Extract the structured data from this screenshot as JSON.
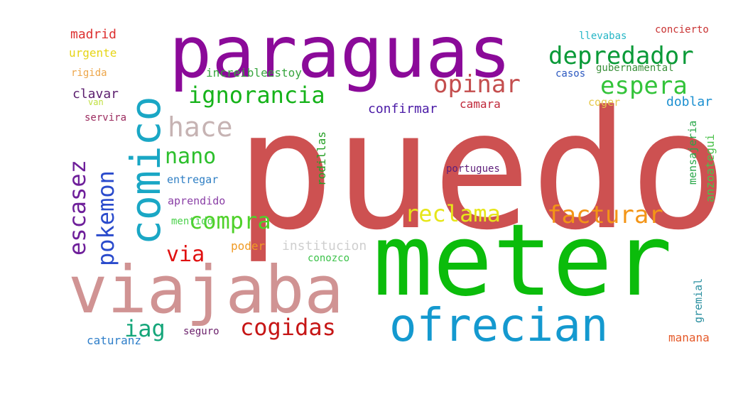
{
  "words": [
    {
      "text": "puedo",
      "color": "#cd5151",
      "orientation": "horizontal"
    },
    {
      "text": "meter",
      "color": "#0bbc0b",
      "orientation": "horizontal"
    },
    {
      "text": "paraguas",
      "color": "#8b0a99",
      "orientation": "horizontal"
    },
    {
      "text": "viajaba",
      "color": "#d09393",
      "orientation": "horizontal"
    },
    {
      "text": "comico",
      "color": "#1aa7c5",
      "orientation": "vertical"
    },
    {
      "text": "ofrecian",
      "color": "#1499cf",
      "orientation": "horizontal"
    },
    {
      "text": "depredador",
      "color": "#0a9a38",
      "orientation": "horizontal"
    },
    {
      "text": "ignorancia",
      "color": "#16b31a",
      "orientation": "horizontal"
    },
    {
      "text": "opinar",
      "color": "#c44e4e",
      "orientation": "horizontal"
    },
    {
      "text": "espera",
      "color": "#33c33a",
      "orientation": "horizontal"
    },
    {
      "text": "hace",
      "color": "#c6b3b3",
      "orientation": "horizontal"
    },
    {
      "text": "nano",
      "color": "#2cbf2c",
      "orientation": "horizontal"
    },
    {
      "text": "escasez",
      "color": "#6e1f9a",
      "orientation": "vertical"
    },
    {
      "text": "pokemon",
      "color": "#2a4bcc",
      "orientation": "vertical"
    },
    {
      "text": "compra",
      "color": "#4fd12a",
      "orientation": "horizontal"
    },
    {
      "text": "reclama",
      "color": "#e6e619",
      "orientation": "horizontal"
    },
    {
      "text": "facturar",
      "color": "#f39517",
      "orientation": "horizontal"
    },
    {
      "text": "via",
      "color": "#e01010",
      "orientation": "horizontal"
    },
    {
      "text": "iag",
      "color": "#15a67a",
      "orientation": "horizontal"
    },
    {
      "text": "cogidas",
      "color": "#c61616",
      "orientation": "horizontal"
    },
    {
      "text": "madrid",
      "color": "#dd3030",
      "orientation": "horizontal"
    },
    {
      "text": "urgente",
      "color": "#e6d416",
      "orientation": "horizontal"
    },
    {
      "text": "rigida",
      "color": "#eda64a",
      "orientation": "horizontal"
    },
    {
      "text": "clavar",
      "color": "#5b1e6e",
      "orientation": "horizontal"
    },
    {
      "text": "van",
      "color": "#c0e040",
      "orientation": "horizontal"
    },
    {
      "text": "servira",
      "color": "#9b2a5e",
      "orientation": "horizontal"
    },
    {
      "text": "increibleestoy",
      "color": "#37a53e",
      "orientation": "horizontal"
    },
    {
      "text": "confirmar",
      "color": "#4a1aa6",
      "orientation": "horizontal"
    },
    {
      "text": "camara",
      "color": "#c0283a",
      "orientation": "horizontal"
    },
    {
      "text": "rodillas",
      "color": "#25a025",
      "orientation": "vertical"
    },
    {
      "text": "entregar",
      "color": "#2f7fc4",
      "orientation": "horizontal"
    },
    {
      "text": "aprendido",
      "color": "#8a3fa6",
      "orientation": "horizontal"
    },
    {
      "text": "mentido",
      "color": "#4bd14b",
      "orientation": "horizontal"
    },
    {
      "text": "poder",
      "color": "#f09a24",
      "orientation": "horizontal"
    },
    {
      "text": "institucion",
      "color": "#cfcfcf",
      "orientation": "horizontal"
    },
    {
      "text": "conozco",
      "color": "#3cc24a",
      "orientation": "horizontal"
    },
    {
      "text": "portugues",
      "color": "#5e1e7a",
      "orientation": "horizontal"
    },
    {
      "text": "caturanz",
      "color": "#2e7ec9",
      "orientation": "horizontal"
    },
    {
      "text": "seguro",
      "color": "#6a1e6a",
      "orientation": "horizontal"
    },
    {
      "text": "llevabas",
      "color": "#26b6c6",
      "orientation": "horizontal"
    },
    {
      "text": "concierto",
      "color": "#c93333",
      "orientation": "horizontal"
    },
    {
      "text": "gubernamental",
      "color": "#3a8f3a",
      "orientation": "horizontal"
    },
    {
      "text": "casos",
      "color": "#2b58c0",
      "orientation": "horizontal"
    },
    {
      "text": "coger",
      "color": "#e6c84a",
      "orientation": "horizontal"
    },
    {
      "text": "doblar",
      "color": "#1b8fd0",
      "orientation": "horizontal"
    },
    {
      "text": "mensajeria",
      "color": "#2aa84a",
      "orientation": "vertical"
    },
    {
      "text": "anzoategui",
      "color": "#4cc24c",
      "orientation": "vertical"
    },
    {
      "text": "gremial",
      "color": "#2a8fa0",
      "orientation": "vertical"
    },
    {
      "text": "manana",
      "color": "#e55a2a",
      "orientation": "horizontal"
    }
  ]
}
